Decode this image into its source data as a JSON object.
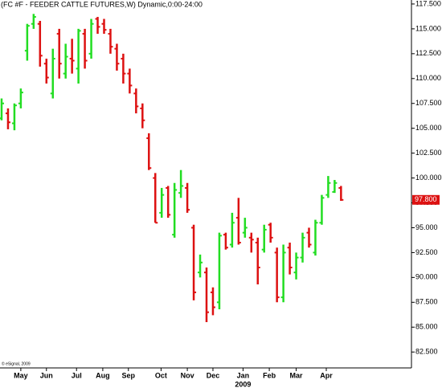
{
  "chart_data": {
    "type": "ohlc",
    "title": "(FC #F - FEEDER CATTLE FUTURES,W) Dynamic,0:00-24:00",
    "copyright": "© eSignal, 2009",
    "year_label": "2009",
    "up_color": "#22dd22",
    "down_color": "#dd1111",
    "open": [
      106,
      106.5,
      105.5,
      107.5,
      112.8,
      115.5,
      115.5,
      111.5,
      108.5,
      114.5,
      110.5,
      112,
      111,
      114.5,
      112.5,
      116,
      115.5,
      114.5,
      113,
      112,
      110.5,
      108.5,
      107,
      104,
      100,
      96.5,
      99,
      94.3,
      98.5,
      99,
      95,
      90.5,
      90.5,
      88.5,
      87.5,
      94.3,
      93.3,
      96,
      94.5,
      94,
      93.5,
      92.8,
      95.3,
      92.5,
      88,
      93,
      90.5,
      92,
      94.5,
      92.5,
      95.5,
      98.3,
      98.6,
      99
    ],
    "high": [
      108,
      107,
      107.5,
      109,
      115.5,
      116.5,
      115.8,
      112,
      113,
      115,
      113.5,
      114,
      115,
      115,
      116,
      116.2,
      116,
      115,
      113.5,
      112.5,
      111,
      109,
      107.5,
      104.5,
      100.5,
      99,
      99.2,
      99.5,
      100.8,
      99.5,
      95.3,
      92.3,
      91,
      89,
      94.5,
      94.5,
      96.5,
      98,
      96,
      94.5,
      94,
      95.3,
      95.5,
      93,
      93.3,
      93.5,
      92.5,
      94.5,
      95,
      95.8,
      98.3,
      100.2,
      99.8,
      99.2
    ],
    "low": [
      105.8,
      104.9,
      104.8,
      107,
      111.8,
      115,
      111.2,
      109.5,
      108,
      110,
      110,
      110.5,
      109.5,
      111,
      112,
      114.5,
      114.5,
      112.5,
      110.8,
      109.5,
      108.5,
      106.5,
      105,
      100.8,
      95.5,
      96,
      96,
      94,
      98,
      96.5,
      87.7,
      90,
      85.5,
      86.2,
      86.8,
      92.8,
      93,
      93.3,
      94,
      92.5,
      89.3,
      92.5,
      93.5,
      87.5,
      87.5,
      90.3,
      89.8,
      91.5,
      93,
      92.2,
      95.3,
      98,
      98.5,
      97.7
    ],
    "close": [
      107.5,
      105.6,
      107.3,
      108.6,
      115.3,
      116.2,
      112.3,
      110.1,
      112,
      111.5,
      112.2,
      111.8,
      114.8,
      111.8,
      115.5,
      115.2,
      114.9,
      113.2,
      111.5,
      110.5,
      109.3,
      107.2,
      105.8,
      101,
      95.5,
      98.3,
      96.3,
      98.8,
      99.2,
      96.8,
      88.5,
      91.5,
      86.5,
      87,
      94.2,
      93,
      95.5,
      93.5,
      95,
      93.8,
      91,
      94.8,
      94,
      88,
      92.5,
      91,
      92,
      94,
      93.3,
      95.5,
      98,
      99.5,
      99.5,
      97.8
    ],
    "last_price": {
      "value": 97.8,
      "label": "97.800"
    },
    "xlim": [
      -0.25,
      64
    ],
    "xticks": [
      {
        "value": 3,
        "label": "May"
      },
      {
        "value": 7,
        "label": "Jun"
      },
      {
        "value": 11.7,
        "label": "Jul"
      },
      {
        "value": 15.8,
        "label": "Aug"
      },
      {
        "value": 19.8,
        "label": "Sep"
      },
      {
        "value": 24.9,
        "label": "Oct"
      },
      {
        "value": 29,
        "label": "Nov"
      },
      {
        "value": 33,
        "label": "Dec"
      },
      {
        "value": 37.7,
        "label": "Jan"
      },
      {
        "value": 41.8,
        "label": "Feb"
      },
      {
        "value": 46,
        "label": "Mar"
      },
      {
        "value": 50.7,
        "label": "Apr"
      }
    ],
    "ylim": [
      80.9,
      117.9
    ],
    "yticks": [
      {
        "value": 82.5,
        "label": "82.500"
      },
      {
        "value": 85,
        "label": "85.000"
      },
      {
        "value": 87.5,
        "label": "87.500"
      },
      {
        "value": 90,
        "label": "90.000"
      },
      {
        "value": 92.5,
        "label": "92.500"
      },
      {
        "value": 95,
        "label": "95.000"
      },
      {
        "value": 97.5,
        "label": "97.500"
      },
      {
        "value": 100,
        "label": "100.000"
      },
      {
        "value": 102.5,
        "label": "102.500"
      },
      {
        "value": 105,
        "label": "105.000"
      },
      {
        "value": 107.5,
        "label": "107.500"
      },
      {
        "value": 110,
        "label": "110.000"
      },
      {
        "value": 112.5,
        "label": "112.500"
      },
      {
        "value": 115,
        "label": "115.000"
      },
      {
        "value": 117.5,
        "label": "117.500"
      }
    ]
  }
}
